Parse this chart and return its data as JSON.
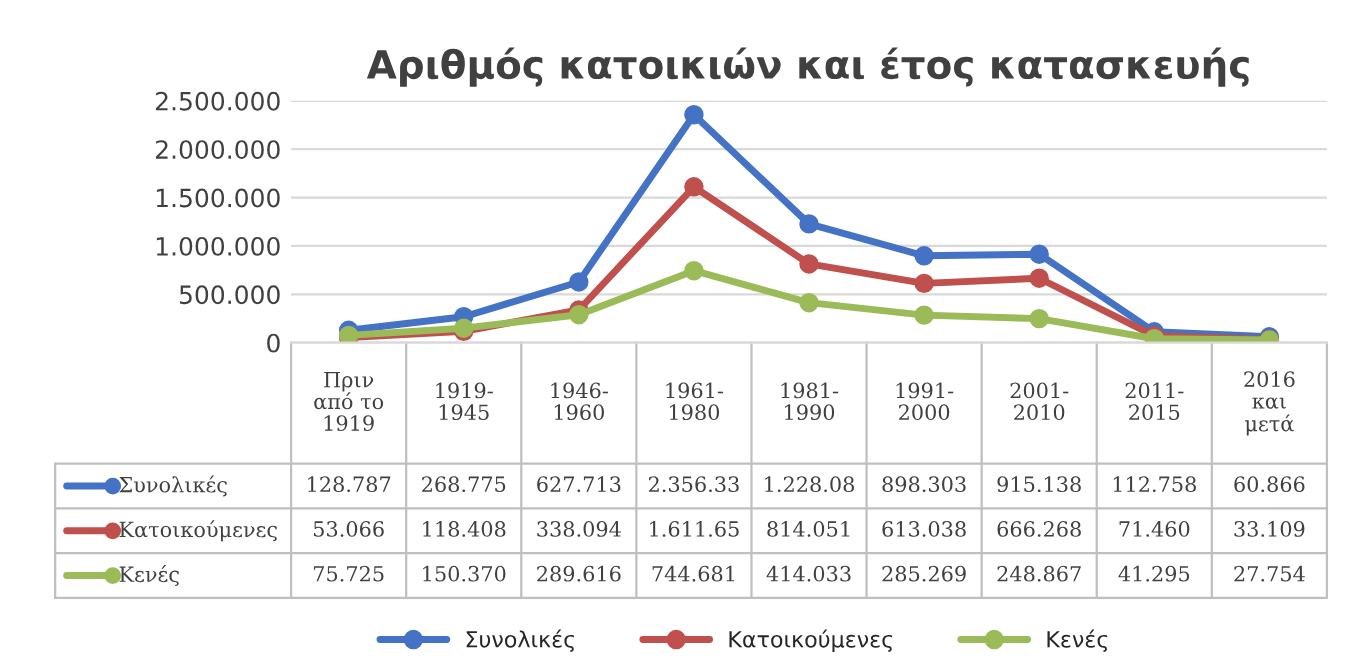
{
  "chart_data": {
    "type": "line",
    "title": "Αριθμός κατοικιών και έτος κατασκευής",
    "categories": [
      "Πριν\nαπό το\n1919",
      "1919-\n1945",
      "1946-\n1960",
      "1961-\n1980",
      "1981-\n1990",
      "1991-\n2000",
      "2001-\n2010",
      "2011-\n2015",
      "2016\nκαι\nμετά"
    ],
    "series": [
      {
        "name": "Συνολικές",
        "color": "#4472c4",
        "values": [
          128787,
          268775,
          627713,
          2356330,
          1228080,
          898303,
          915138,
          112758,
          60866
        ],
        "value_labels": [
          "128.787",
          "268.775",
          "627.713",
          "2.356.33",
          "1.228.08",
          "898.303",
          "915.138",
          "112.758",
          "60.866"
        ]
      },
      {
        "name": "Κατοικούμενες",
        "color": "#c0504d",
        "values": [
          53066,
          118408,
          338094,
          1611650,
          814051,
          613038,
          666268,
          71460,
          33109
        ],
        "value_labels": [
          "53.066",
          "118.408",
          "338.094",
          "1.611.65",
          "814.051",
          "613.038",
          "666.268",
          "71.460",
          "33.109"
        ]
      },
      {
        "name": "Κενές",
        "color": "#9bbb59",
        "values": [
          75725,
          150370,
          289616,
          744681,
          414033,
          285269,
          248867,
          41295,
          27754
        ],
        "value_labels": [
          "75.725",
          "150.370",
          "289.616",
          "744.681",
          "414.033",
          "285.269",
          "248.867",
          "41.295",
          "27.754"
        ]
      }
    ],
    "ylim": [
      0,
      2500000
    ],
    "yticks": [
      0,
      {
        "value": 500000,
        "label": "500.000"
      },
      {
        "value": 1000000,
        "label": "1.000.000"
      },
      {
        "value": 1500000,
        "label": "1.500.000"
      },
      {
        "value": 2000000,
        "label": "2.000.000"
      },
      {
        "value": 2500000,
        "label": "2.500.000"
      }
    ],
    "grid": "y",
    "marker": "circle",
    "line_style": "solid",
    "legend": "bottom"
  }
}
